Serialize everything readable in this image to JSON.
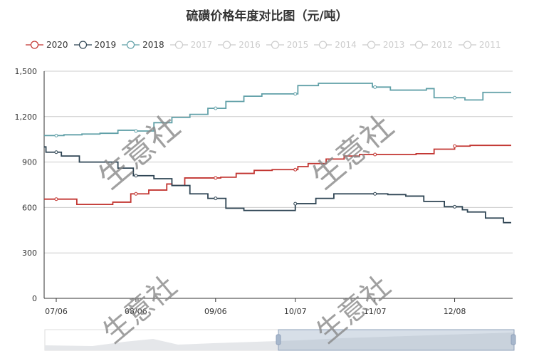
{
  "chart_data": {
    "type": "line",
    "title": "硫磺价格年度对比图（元/吨）",
    "step": true,
    "xlabel": "",
    "ylabel": "",
    "ylim": [
      0,
      1500
    ],
    "yticks": [
      "0",
      "300",
      "600",
      "900",
      "1,200",
      "1,500"
    ],
    "ytick_values": [
      0,
      300,
      600,
      900,
      1200,
      1500
    ],
    "xticks": [
      "07/06",
      "08/06",
      "09/06",
      "10/07",
      "11/07",
      "12/08"
    ],
    "xrange": [
      "07/01",
      "12/30"
    ],
    "grid": true,
    "legend_position": "top",
    "legend": [
      {
        "name": "2020",
        "active": true,
        "color": "#c23531"
      },
      {
        "name": "2019",
        "active": true,
        "color": "#2f4554"
      },
      {
        "name": "2018",
        "active": true,
        "color": "#61a0a8"
      },
      {
        "name": "2017",
        "active": false
      },
      {
        "name": "2016",
        "active": false
      },
      {
        "name": "2015",
        "active": false
      },
      {
        "name": "2014",
        "active": false
      },
      {
        "name": "2013",
        "active": false
      },
      {
        "name": "2012",
        "active": false
      },
      {
        "name": "2011",
        "active": false
      }
    ],
    "series": [
      {
        "name": "2020",
        "color": "#c23531",
        "points": [
          [
            "07/01",
            655
          ],
          [
            "07/14",
            620
          ],
          [
            "07/28",
            635
          ],
          [
            "08/04",
            690
          ],
          [
            "08/11",
            715
          ],
          [
            "08/18",
            755
          ],
          [
            "08/20",
            745
          ],
          [
            "08/25",
            795
          ],
          [
            "09/08",
            800
          ],
          [
            "09/14",
            825
          ],
          [
            "09/21",
            845
          ],
          [
            "09/28",
            850
          ],
          [
            "10/08",
            870
          ],
          [
            "10/12",
            890
          ],
          [
            "10/19",
            920
          ],
          [
            "10/26",
            940
          ],
          [
            "11/01",
            950
          ],
          [
            "11/23",
            955
          ],
          [
            "11/30",
            985
          ],
          [
            "12/08",
            1005
          ],
          [
            "12/14",
            1010
          ],
          [
            "12/30",
            1010
          ]
        ]
      },
      {
        "name": "2019",
        "color": "#2f4554",
        "points": [
          [
            "07/01",
            1000
          ],
          [
            "07/02",
            965
          ],
          [
            "07/08",
            940
          ],
          [
            "07/15",
            900
          ],
          [
            "07/30",
            860
          ],
          [
            "08/05",
            810
          ],
          [
            "08/13",
            790
          ],
          [
            "08/20",
            745
          ],
          [
            "08/27",
            690
          ],
          [
            "09/03",
            660
          ],
          [
            "09/10",
            595
          ],
          [
            "09/17",
            580
          ],
          [
            "10/07",
            625
          ],
          [
            "10/15",
            660
          ],
          [
            "10/22",
            690
          ],
          [
            "11/12",
            685
          ],
          [
            "11/19",
            675
          ],
          [
            "11/26",
            640
          ],
          [
            "12/04",
            605
          ],
          [
            "12/11",
            585
          ],
          [
            "12/13",
            570
          ],
          [
            "12/20",
            530
          ],
          [
            "12/27",
            500
          ],
          [
            "12/30",
            500
          ]
        ]
      },
      {
        "name": "2018",
        "color": "#61a0a8",
        "points": [
          [
            "07/01",
            1075
          ],
          [
            "07/09",
            1080
          ],
          [
            "07/16",
            1085
          ],
          [
            "07/23",
            1090
          ],
          [
            "07/30",
            1110
          ],
          [
            "08/06",
            1105
          ],
          [
            "08/13",
            1160
          ],
          [
            "08/20",
            1195
          ],
          [
            "08/27",
            1215
          ],
          [
            "09/03",
            1255
          ],
          [
            "09/10",
            1300
          ],
          [
            "09/17",
            1335
          ],
          [
            "09/24",
            1350
          ],
          [
            "10/08",
            1405
          ],
          [
            "10/16",
            1420
          ],
          [
            "11/06",
            1395
          ],
          [
            "11/13",
            1375
          ],
          [
            "11/27",
            1385
          ],
          [
            "11/30",
            1325
          ],
          [
            "12/12",
            1310
          ],
          [
            "12/19",
            1360
          ],
          [
            "12/30",
            1360
          ]
        ]
      }
    ]
  },
  "watermark": "生意社",
  "datazoom": {
    "start_percent": 50,
    "end_percent": 100
  }
}
